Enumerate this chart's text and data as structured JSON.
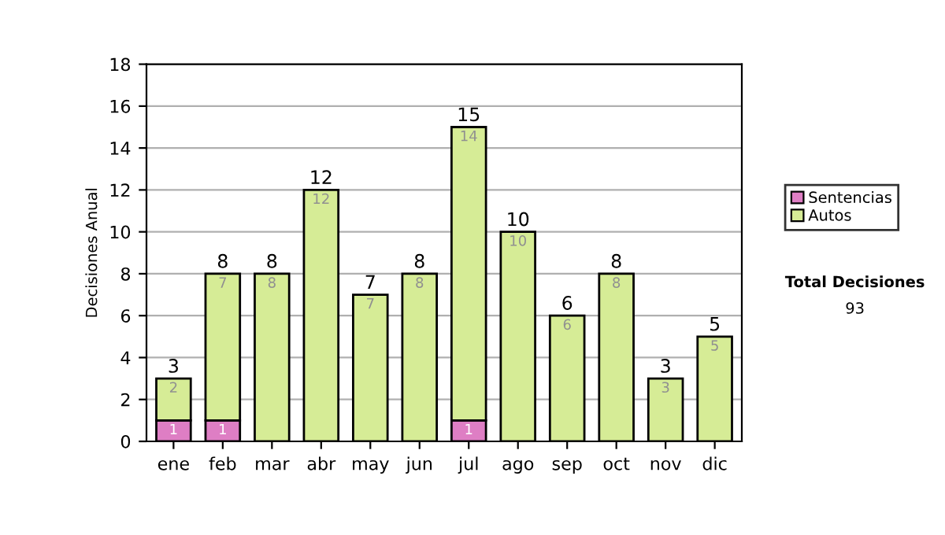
{
  "chart_data": {
    "type": "bar",
    "stacked": true,
    "ylabel": "Decisiones Anual",
    "categories": [
      "ene",
      "feb",
      "mar",
      "abr",
      "may",
      "jun",
      "jul",
      "ago",
      "sep",
      "oct",
      "nov",
      "dic"
    ],
    "series": [
      {
        "name": "Sentencias",
        "color": "#de7ec4",
        "values": [
          1,
          1,
          0,
          0,
          0,
          0,
          1,
          0,
          0,
          0,
          0,
          0
        ],
        "value_labels": [
          "1",
          "1",
          null,
          null,
          null,
          null,
          "1",
          null,
          null,
          null,
          null,
          null
        ]
      },
      {
        "name": "Autos",
        "color": "#d6ec96",
        "values": [
          2,
          7,
          8,
          12,
          7,
          8,
          14,
          10,
          6,
          8,
          3,
          5
        ],
        "value_labels": [
          "2",
          "7",
          "8",
          "12",
          "7",
          "8",
          "14",
          "10",
          "6",
          "8",
          "3",
          "5"
        ]
      }
    ],
    "totals": [
      "3",
      "8",
      "8",
      "12",
      "7",
      "8",
      "15",
      "10",
      "6",
      "8",
      "3",
      "5"
    ],
    "ylim": [
      0,
      18
    ],
    "yticks": [
      0,
      2,
      4,
      6,
      8,
      10,
      12,
      14,
      16,
      18
    ],
    "grid": "y",
    "legend": "right",
    "annotations": [
      "Total Decisiones",
      "93"
    ]
  }
}
